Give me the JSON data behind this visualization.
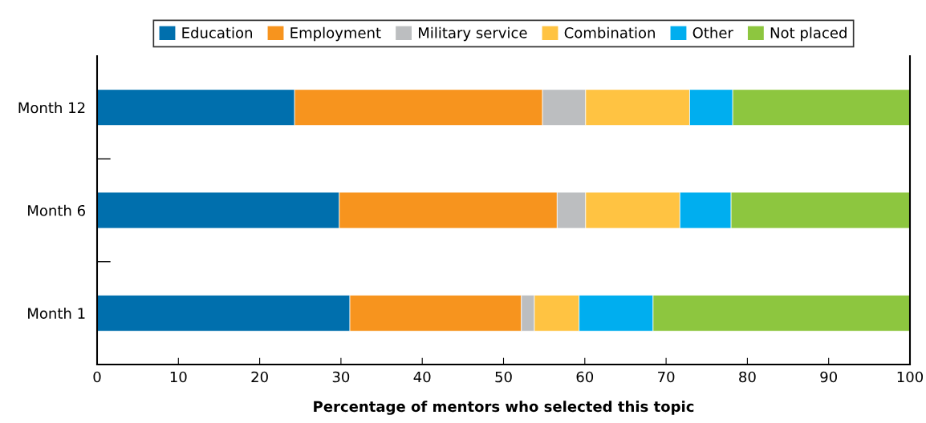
{
  "chart_data": {
    "type": "bar",
    "orientation": "horizontal",
    "stacked": true,
    "xlabel": "Percentage of mentors who selected this topic",
    "categories": [
      "Month 12",
      "Month 6",
      "Month 1"
    ],
    "series": [
      {
        "name": "Education",
        "color": "#006fad",
        "values": [
          24.3,
          29.8,
          31.1
        ]
      },
      {
        "name": "Employment",
        "color": "#f7941e",
        "values": [
          30.5,
          26.8,
          21.1
        ]
      },
      {
        "name": "Military service",
        "color": "#bcbec0",
        "values": [
          5.3,
          3.5,
          1.6
        ]
      },
      {
        "name": "Combination",
        "color": "#ffc342",
        "values": [
          12.8,
          11.6,
          5.5
        ]
      },
      {
        "name": "Other",
        "color": "#00aeef",
        "values": [
          5.3,
          6.3,
          9.1
        ]
      },
      {
        "name": "Not placed",
        "color": "#8dc63f",
        "values": [
          21.8,
          22.0,
          31.6
        ]
      }
    ],
    "xlim": [
      0,
      100
    ],
    "xticks": [
      0,
      10,
      20,
      30,
      40,
      50,
      60,
      70,
      80,
      90,
      100
    ],
    "grid": false,
    "legend": "top"
  }
}
